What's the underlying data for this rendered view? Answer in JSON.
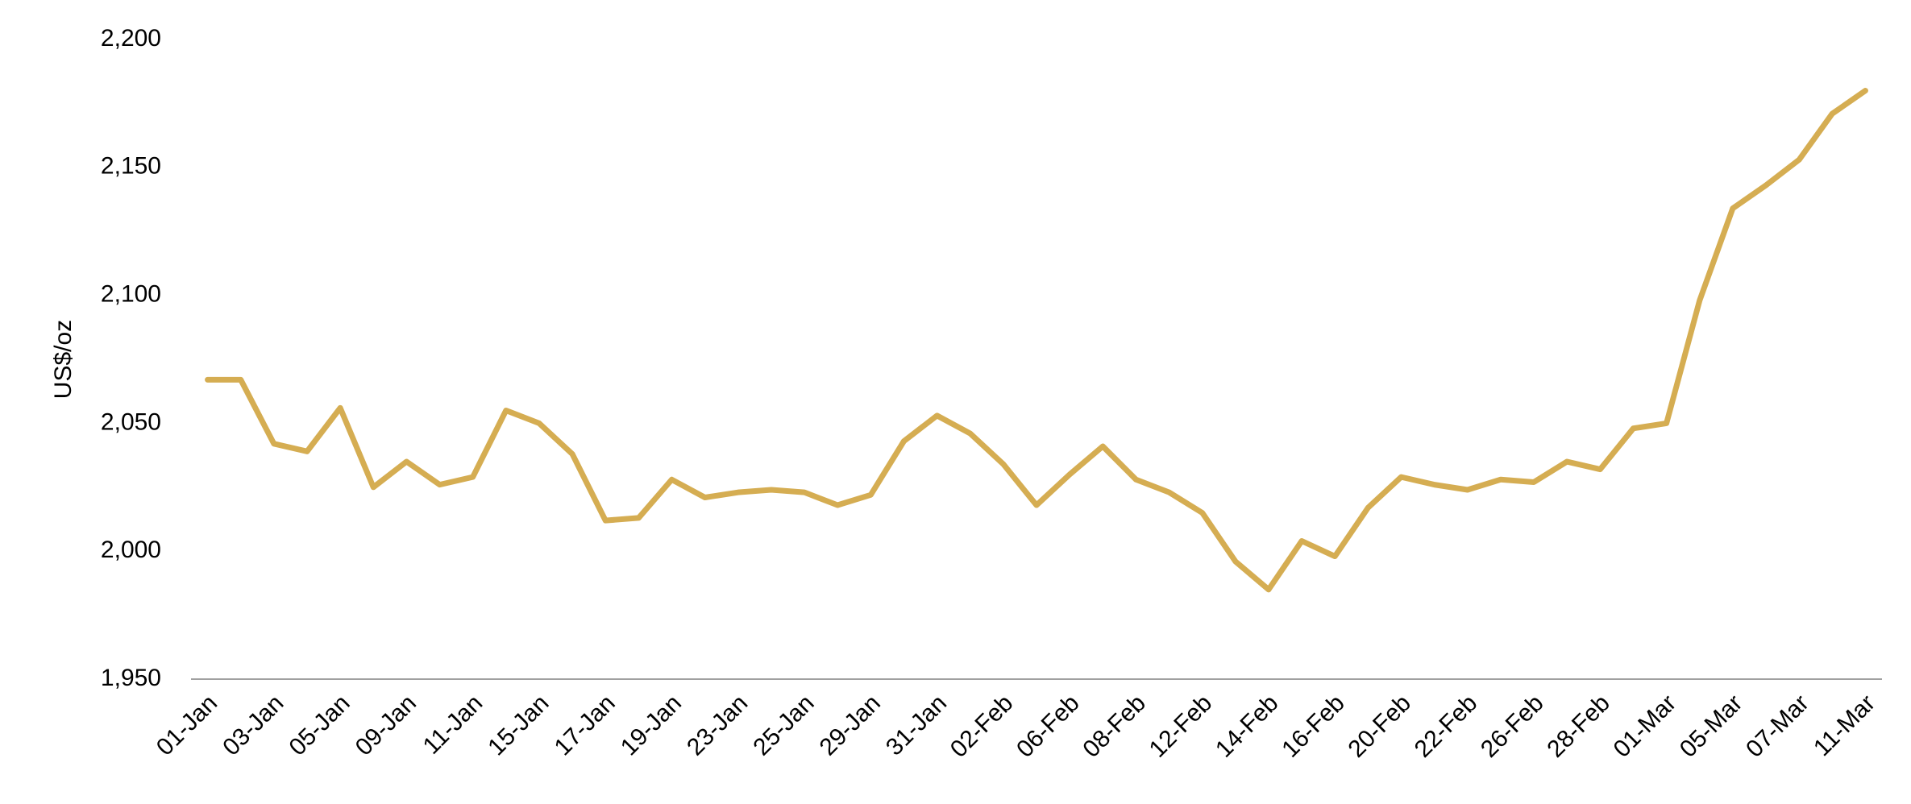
{
  "chart_data": {
    "type": "line",
    "y_label": "US$/oz",
    "categories": [
      "01-Jan",
      null,
      "03-Jan",
      null,
      "05-Jan",
      null,
      "09-Jan",
      null,
      "11-Jan",
      null,
      "15-Jan",
      null,
      "17-Jan",
      null,
      "19-Jan",
      null,
      "23-Jan",
      null,
      "25-Jan",
      null,
      "29-Jan",
      null,
      "31-Jan",
      null,
      "02-Feb",
      null,
      "06-Feb",
      null,
      "08-Feb",
      null,
      "12-Feb",
      null,
      "14-Feb",
      null,
      "16-Feb",
      null,
      "20-Feb",
      null,
      "22-Feb",
      null,
      "26-Feb",
      null,
      "28-Feb",
      null,
      "01-Mar",
      null,
      "05-Mar",
      null,
      "07-Mar",
      null,
      "11-Mar"
    ],
    "values": [
      2067,
      2067,
      2042,
      2039,
      2056,
      2025,
      2035,
      2026,
      2029,
      2055,
      2050,
      2038,
      2012,
      2013,
      2028,
      2021,
      2023,
      2024,
      2023,
      2018,
      2022,
      2043,
      2053,
      2046,
      2034,
      2018,
      2030,
      2041,
      2028,
      2023,
      2015,
      1996,
      1985,
      2004,
      1998,
      2017,
      2029,
      2026,
      2024,
      2028,
      2027,
      2035,
      2032,
      2048,
      2050,
      2098,
      2134,
      2143,
      2153,
      2171,
      2180
    ],
    "color": "#d5ad52",
    "ylim": [
      1950,
      2200
    ],
    "yticks": [
      {
        "value": 1950,
        "label": "1,950"
      },
      {
        "value": 2000,
        "label": "2,000"
      },
      {
        "value": 2050,
        "label": "2,050"
      },
      {
        "value": 2100,
        "label": "2,100"
      },
      {
        "value": 2150,
        "label": "2,150"
      },
      {
        "value": 2200,
        "label": "2,200"
      }
    ],
    "grid": false
  }
}
